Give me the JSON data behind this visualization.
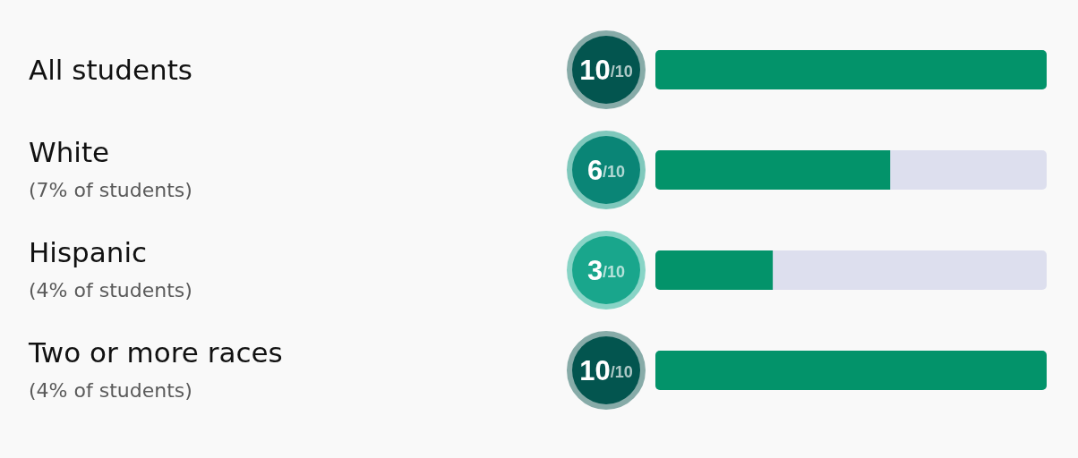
{
  "chart_data": {
    "type": "bar",
    "orientation": "horizontal",
    "categories": [
      "All students",
      "White\n(7% of students)",
      "Hispanic\n(4% of students)",
      "Two or more races\n(4% of students)"
    ],
    "values": [
      1,
      0.6,
      0.3,
      1
    ],
    "color": "#03936a",
    "value_labels": [
      "10/10",
      "6/10",
      "3/10",
      "10/10"
    ],
    "xlim": [
      0,
      1
    ],
    "tick_labels": "y"
  }
}
